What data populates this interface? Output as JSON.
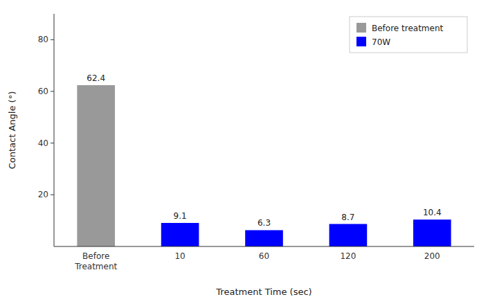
{
  "chart_data": {
    "type": "bar",
    "categories": [
      "Before\nTreatment",
      "10",
      "60",
      "120",
      "200"
    ],
    "series": [
      {
        "name": "Before treatment",
        "color": "#999999",
        "values": [
          62.4,
          null,
          null,
          null,
          null
        ]
      },
      {
        "name": "70W",
        "color": "#0000ff",
        "values": [
          null,
          9.1,
          6.3,
          8.7,
          10.4
        ]
      }
    ],
    "xlabel": "Treatment Time  (sec)",
    "ylabel": "Contact Angle (°)",
    "ylim": [
      0,
      90
    ],
    "yticks": [
      20,
      40,
      60,
      80
    ],
    "legend": "upper right",
    "data_labels": true,
    "grid": false
  }
}
